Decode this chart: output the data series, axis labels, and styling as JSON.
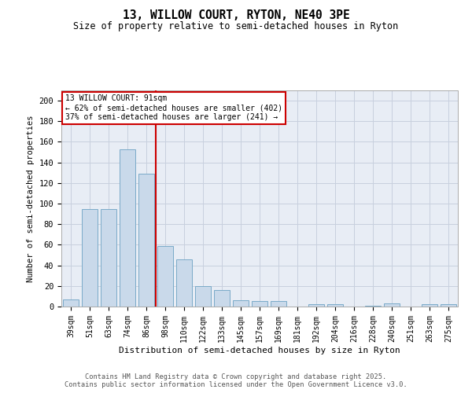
{
  "title": "13, WILLOW COURT, RYTON, NE40 3PE",
  "subtitle": "Size of property relative to semi-detached houses in Ryton",
  "xlabel": "Distribution of semi-detached houses by size in Ryton",
  "ylabel": "Number of semi-detached properties",
  "categories": [
    "39sqm",
    "51sqm",
    "63sqm",
    "74sqm",
    "86sqm",
    "98sqm",
    "110sqm",
    "122sqm",
    "133sqm",
    "145sqm",
    "157sqm",
    "169sqm",
    "181sqm",
    "192sqm",
    "204sqm",
    "216sqm",
    "228sqm",
    "240sqm",
    "251sqm",
    "263sqm",
    "275sqm"
  ],
  "values": [
    7,
    95,
    95,
    153,
    129,
    59,
    46,
    20,
    16,
    6,
    5,
    5,
    0,
    2,
    2,
    0,
    1,
    3,
    0,
    2,
    2
  ],
  "bar_color": "#c9d9ea",
  "bar_edge_color": "#7aaac8",
  "property_line_x": 4.5,
  "property_sqm": 91,
  "pct_smaller": 62,
  "count_smaller": 402,
  "pct_larger": 37,
  "count_larger": 241,
  "annotation_box_color": "#cc0000",
  "ylim": [
    0,
    210
  ],
  "yticks": [
    0,
    20,
    40,
    60,
    80,
    100,
    120,
    140,
    160,
    180,
    200
  ],
  "grid_color": "#c8d0de",
  "bg_color": "#e8edf5",
  "footer_line1": "Contains HM Land Registry data © Crown copyright and database right 2025.",
  "footer_line2": "Contains public sector information licensed under the Open Government Licence v3.0."
}
